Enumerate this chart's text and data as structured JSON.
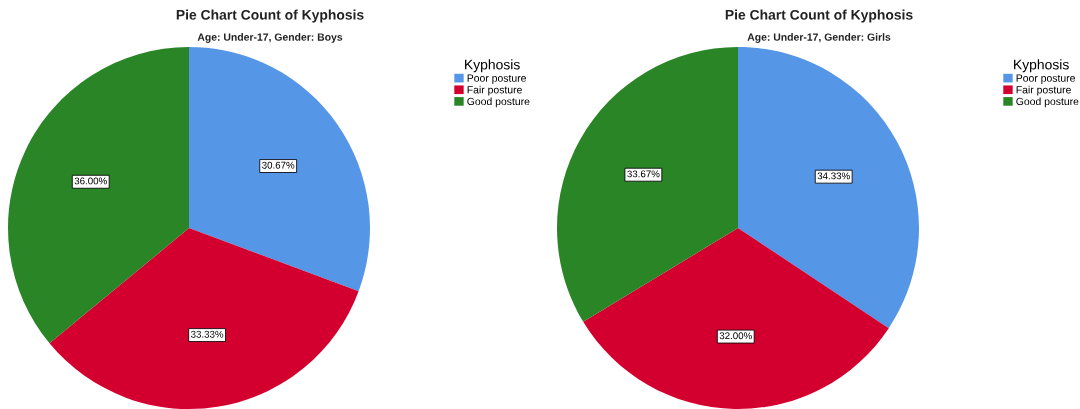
{
  "chart_data": [
    {
      "type": "pie",
      "title": "Pie Chart Count of Kyphosis",
      "subtitle": "Age: Under-17, Gender: Boys",
      "legend_title": "Kyphosis",
      "legend": "right",
      "data_labels": true,
      "categories": [
        "Poor posture",
        "Fair posture",
        "Good posture"
      ],
      "values": [
        30.67,
        33.33,
        36.0
      ],
      "value_labels": [
        "30.67%",
        "33.33%",
        "36.00%"
      ],
      "colors": [
        "#5596e6",
        "#d3002f",
        "#2a8527"
      ]
    },
    {
      "type": "pie",
      "title": "Pie Chart Count of Kyphosis",
      "subtitle": "Age: Under-17, Gender: Girls",
      "legend_title": "Kyphosis",
      "legend": "right",
      "data_labels": true,
      "categories": [
        "Poor posture",
        "Fair posture",
        "Good posture"
      ],
      "values": [
        34.33,
        32.0,
        33.67
      ],
      "value_labels": [
        "34.33%",
        "32.00%",
        "33.67%"
      ],
      "colors": [
        "#5596e6",
        "#d3002f",
        "#2a8527"
      ]
    }
  ]
}
